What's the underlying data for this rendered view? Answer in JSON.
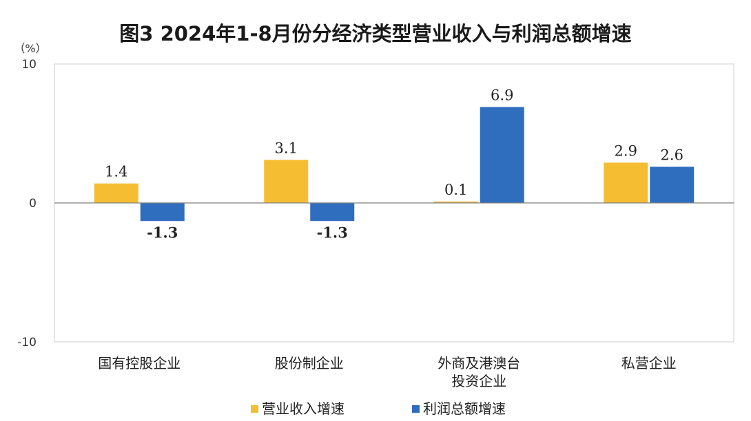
{
  "chart_data": {
    "type": "bar",
    "title": "图3  2024年1-8月份分经济类型营业收入与利润总额增速",
    "ylabel": "（%）",
    "ylim": [
      -10,
      10
    ],
    "yticks": [
      10,
      0,
      -10
    ],
    "grid": false,
    "legend_position": "bottom",
    "categories": [
      [
        "国有控股企业"
      ],
      [
        "股份制企业"
      ],
      [
        "外商及港澳台",
        "投资企业"
      ],
      [
        "私营企业"
      ]
    ],
    "series": [
      {
        "name": "营业收入增速",
        "color": "#F5BE32",
        "values": [
          1.4,
          3.1,
          0.1,
          2.9
        ],
        "labels": [
          "1.4",
          "3.1",
          "0.1",
          "2.9"
        ]
      },
      {
        "name": "利润总额增速",
        "color": "#2F6DBF",
        "values": [
          -1.3,
          -1.3,
          6.9,
          2.6
        ],
        "labels": [
          "-1.3",
          "-1.3",
          "6.9",
          "2.6"
        ]
      }
    ]
  }
}
